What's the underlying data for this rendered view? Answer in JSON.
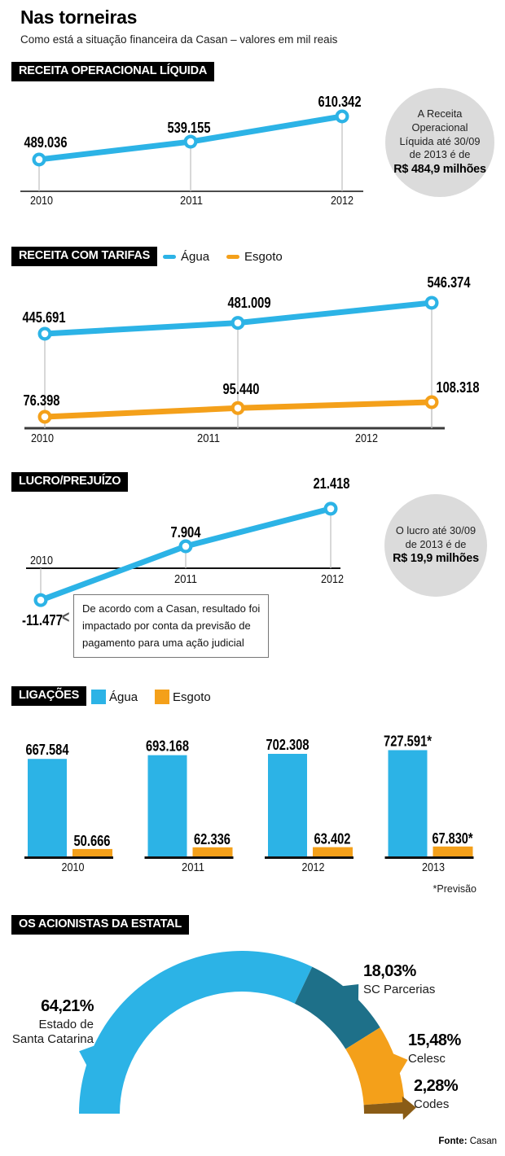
{
  "page": {
    "title": "Nas torneiras",
    "subtitle": "Como está a situação financeira da Casan – valores em mil reais",
    "source_label": "Fonte:",
    "source_value": "Casan"
  },
  "colors": {
    "agua": "#2CB3E6",
    "esgoto": "#F4A01A",
    "sc_parcerias": "#1E7089",
    "codes": "#8A5C16",
    "note_circle": "#DBDBDB",
    "header_bg": "#000000",
    "header_text": "#FFFFFF"
  },
  "headers": {
    "receita_operacional": "RECEITA OPERACIONAL LÍQUIDA",
    "receita_tarifas": "RECEITA COM TARIFAS",
    "lucro": "LUCRO/PREJUÍZO",
    "ligacoes": "LIGAÇÕES",
    "acionistas": "OS ACIONISTAS DA ESTATAL"
  },
  "legends": {
    "tarifas": [
      {
        "label": "Água",
        "color": "#2CB3E6"
      },
      {
        "label": "Esgoto",
        "color": "#F4A01A"
      }
    ],
    "ligacoes": [
      {
        "label": "Água",
        "color": "#2CB3E6"
      },
      {
        "label": "Esgoto",
        "color": "#F4A01A"
      }
    ]
  },
  "notes": {
    "receita_2013": {
      "lines": [
        "A Receita",
        "Operacional",
        "Líquida até 30/09",
        "de 2013 é de"
      ],
      "bold": "R$ 484,9 milhões"
    },
    "lucro_2013": {
      "lines": [
        "O lucro até 30/09",
        "de 2013 é de"
      ],
      "bold": "R$ 19,9 milhões"
    },
    "lucro_callout": [
      "De acordo com a Casan, resultado foi",
      "impactado por conta da previsão de",
      "pagamento para uma ação judicial"
    ]
  },
  "chart_data": [
    {
      "id": "receita_operacional_liquida",
      "type": "line",
      "title": "RECEITA OPERACIONAL LÍQUIDA",
      "unit": "mil reais",
      "categories": [
        "2010",
        "2011",
        "2012"
      ],
      "series": [
        {
          "name": "Receita Operacional Líquida",
          "color": "#2CB3E6",
          "values": [
            489036,
            539155,
            610342
          ],
          "labels": [
            "489.036",
            "539.155",
            "610.342"
          ]
        }
      ],
      "annotation": "A Receita Operacional Líquida até 30/09 de 2013 é de R$ 484,9 milhões"
    },
    {
      "id": "receita_com_tarifas",
      "type": "line",
      "title": "RECEITA COM TARIFAS",
      "unit": "mil reais",
      "categories": [
        "2010",
        "2011",
        "2012"
      ],
      "series": [
        {
          "name": "Água",
          "color": "#2CB3E6",
          "values": [
            445691,
            481009,
            546374
          ],
          "labels": [
            "445.691",
            "481.009",
            "546.374"
          ]
        },
        {
          "name": "Esgoto",
          "color": "#F4A01A",
          "values": [
            76398,
            95440,
            108318
          ],
          "labels": [
            "76.398",
            "95.440",
            "108.318"
          ]
        }
      ]
    },
    {
      "id": "lucro_prejuizo",
      "type": "line",
      "title": "LUCRO/PREJUÍZO",
      "unit": "mil reais",
      "categories": [
        "2010",
        "2011",
        "2012"
      ],
      "series": [
        {
          "name": "Lucro/Prejuízo",
          "color": "#2CB3E6",
          "values": [
            -11477,
            7904,
            21418
          ],
          "labels": [
            "-11.477",
            "7.904",
            "21.418"
          ]
        }
      ],
      "annotation": "O lucro até 30/09 de 2013 é de R$ 19,9 milhões",
      "callout": "De acordo com a Casan, resultado foi impactado por conta da previsão de pagamento para uma ação judicial"
    },
    {
      "id": "ligacoes",
      "type": "bar",
      "title": "LIGAÇÕES",
      "categories": [
        "2010",
        "2011",
        "2012",
        "2013"
      ],
      "series": [
        {
          "name": "Água",
          "color": "#2CB3E6",
          "values": [
            667584,
            693168,
            702308,
            727591
          ],
          "labels": [
            "667.584",
            "693.168",
            "702.308",
            "727.591*"
          ]
        },
        {
          "name": "Esgoto",
          "color": "#F4A01A",
          "values": [
            50666,
            62336,
            63402,
            67830
          ],
          "labels": [
            "50.666",
            "62.336",
            "63.402",
            "67.830*"
          ]
        }
      ],
      "footnote": "*Previsão"
    },
    {
      "id": "acionistas",
      "type": "pie",
      "subtype": "semicircle-donut",
      "title": "OS ACIONISTAS DA ESTATAL",
      "slices": [
        {
          "label": "Estado de Santa Catarina",
          "pct": 64.21,
          "pct_label": "64,21%",
          "color": "#2CB3E6"
        },
        {
          "label": "SC Parcerias",
          "pct": 18.03,
          "pct_label": "18,03%",
          "color": "#1E7089"
        },
        {
          "label": "Celesc",
          "pct": 15.48,
          "pct_label": "15,48%",
          "color": "#F4A01A"
        },
        {
          "label": "Codes",
          "pct": 2.28,
          "pct_label": "2,28%",
          "color": "#8A5C16"
        }
      ]
    }
  ]
}
